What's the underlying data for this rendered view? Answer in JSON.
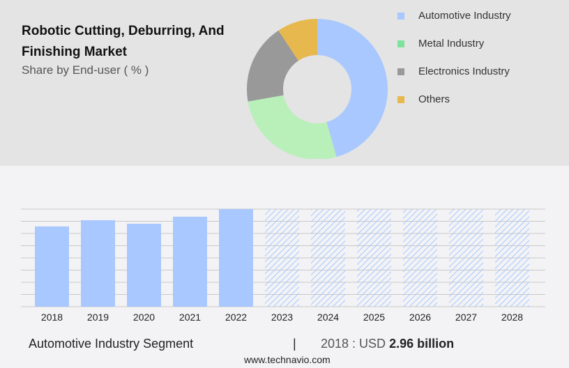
{
  "title": "Robotic Cutting, Deburring, And Finishing Market",
  "subtitle": "Share by End-user ( % )",
  "colors": {
    "automotive": "#a8c8ff",
    "metal": "#b9efb9",
    "metal_legend": "#7de39a",
    "electronics": "#999999",
    "others": "#e6b84e",
    "hatch": "#a8c8ff"
  },
  "chart_data": [
    {
      "type": "pie",
      "style": "donut",
      "legend_placement": "right",
      "labels": [
        "Automotive Industry",
        "Metal Industry",
        "Electronics Industry",
        "Others"
      ],
      "values": [
        45.6,
        26.6,
        18.5,
        9.3
      ]
    },
    {
      "type": "bar",
      "grid": true,
      "categories": [
        "2018",
        "2019",
        "2020",
        "2021",
        "2022",
        "2023",
        "2024",
        "2025",
        "2026",
        "2027",
        "2028"
      ],
      "values": [
        2.96,
        3.19,
        3.06,
        3.32,
        3.6,
        null,
        null,
        null,
        null,
        null,
        null
      ],
      "forecast_from": "2023",
      "ylim": [
        0,
        3.6
      ]
    }
  ],
  "footer": {
    "segment": "Automotive Industry Segment",
    "separator": "|",
    "year_label": "2018 : USD",
    "value": "2.96 billion",
    "site": "www.technavio.com"
  }
}
